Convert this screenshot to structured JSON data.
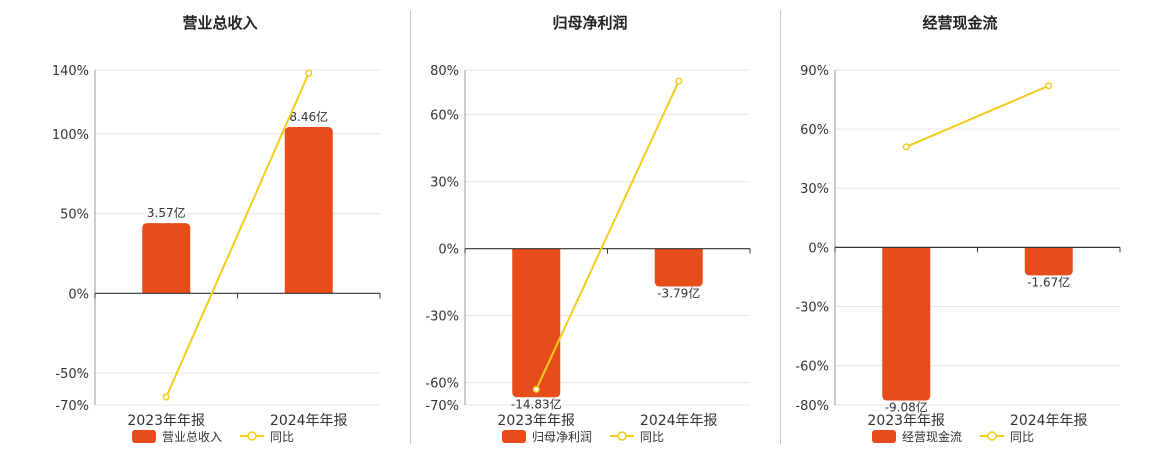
{
  "colors": {
    "bar": "#e84c1b",
    "line": "#f2cc1c",
    "grid": "#e6e6e6",
    "axis": "#333333"
  },
  "chart_data": [
    {
      "type": "bar",
      "title": "营业总收入",
      "categories": [
        "2023年年报",
        "2024年年报"
      ],
      "series": [
        {
          "name": "营业总收入",
          "type": "bar",
          "values": [
            3.57,
            8.46
          ],
          "labels": [
            "3.57亿",
            "8.46亿"
          ]
        },
        {
          "name": "同比",
          "type": "line",
          "values": [
            -65,
            138
          ]
        }
      ],
      "y_ticks": [
        {
          "value": 140,
          "label": "140%"
        },
        {
          "value": 100,
          "label": "100%"
        },
        {
          "value": 50,
          "label": "50%"
        },
        {
          "value": 0,
          "label": "0%"
        },
        {
          "value": -50,
          "label": "-50%"
        },
        {
          "value": -70,
          "label": "-70%"
        }
      ],
      "ylim": [
        -70,
        140
      ],
      "bar_ylim": [
        -5.68,
        11.36
      ],
      "grid": true,
      "legend_position": "bottom"
    },
    {
      "type": "bar",
      "title": "归母净利润",
      "categories": [
        "2023年年报",
        "2024年年报"
      ],
      "series": [
        {
          "name": "归母净利润",
          "type": "bar",
          "values": [
            -14.83,
            -3.79
          ],
          "labels": [
            "-14.83亿",
            "-3.79亿"
          ]
        },
        {
          "name": "同比",
          "type": "line",
          "values": [
            -63,
            75
          ]
        }
      ],
      "y_ticks": [
        {
          "value": 80,
          "label": "80%"
        },
        {
          "value": 60,
          "label": "60%"
        },
        {
          "value": 30,
          "label": "30%"
        },
        {
          "value": 0,
          "label": "0%"
        },
        {
          "value": -30,
          "label": "-30%"
        },
        {
          "value": -60,
          "label": "-60%"
        },
        {
          "value": -70,
          "label": "-70%"
        }
      ],
      "ylim": [
        -70,
        80
      ],
      "bar_ylim": [
        -15.6,
        17.8
      ],
      "grid": true,
      "legend_position": "bottom"
    },
    {
      "type": "bar",
      "title": "经营现金流",
      "categories": [
        "2023年年报",
        "2024年年报"
      ],
      "series": [
        {
          "name": "经营现金流",
          "type": "bar",
          "values": [
            -9.08,
            -1.67
          ],
          "labels": [
            "-9.08亿",
            "-1.67亿"
          ]
        },
        {
          "name": "同比",
          "type": "line",
          "values": [
            51,
            82
          ]
        }
      ],
      "y_ticks": [
        {
          "value": 90,
          "label": "90%"
        },
        {
          "value": 60,
          "label": "60%"
        },
        {
          "value": 30,
          "label": "30%"
        },
        {
          "value": 0,
          "label": "0%"
        },
        {
          "value": -30,
          "label": "-30%"
        },
        {
          "value": -60,
          "label": "-60%"
        },
        {
          "value": -80,
          "label": "-80%"
        }
      ],
      "ylim": [
        -80,
        90
      ],
      "bar_ylim": [
        -9.35,
        10.5
      ],
      "grid": true,
      "legend_position": "bottom"
    }
  ]
}
